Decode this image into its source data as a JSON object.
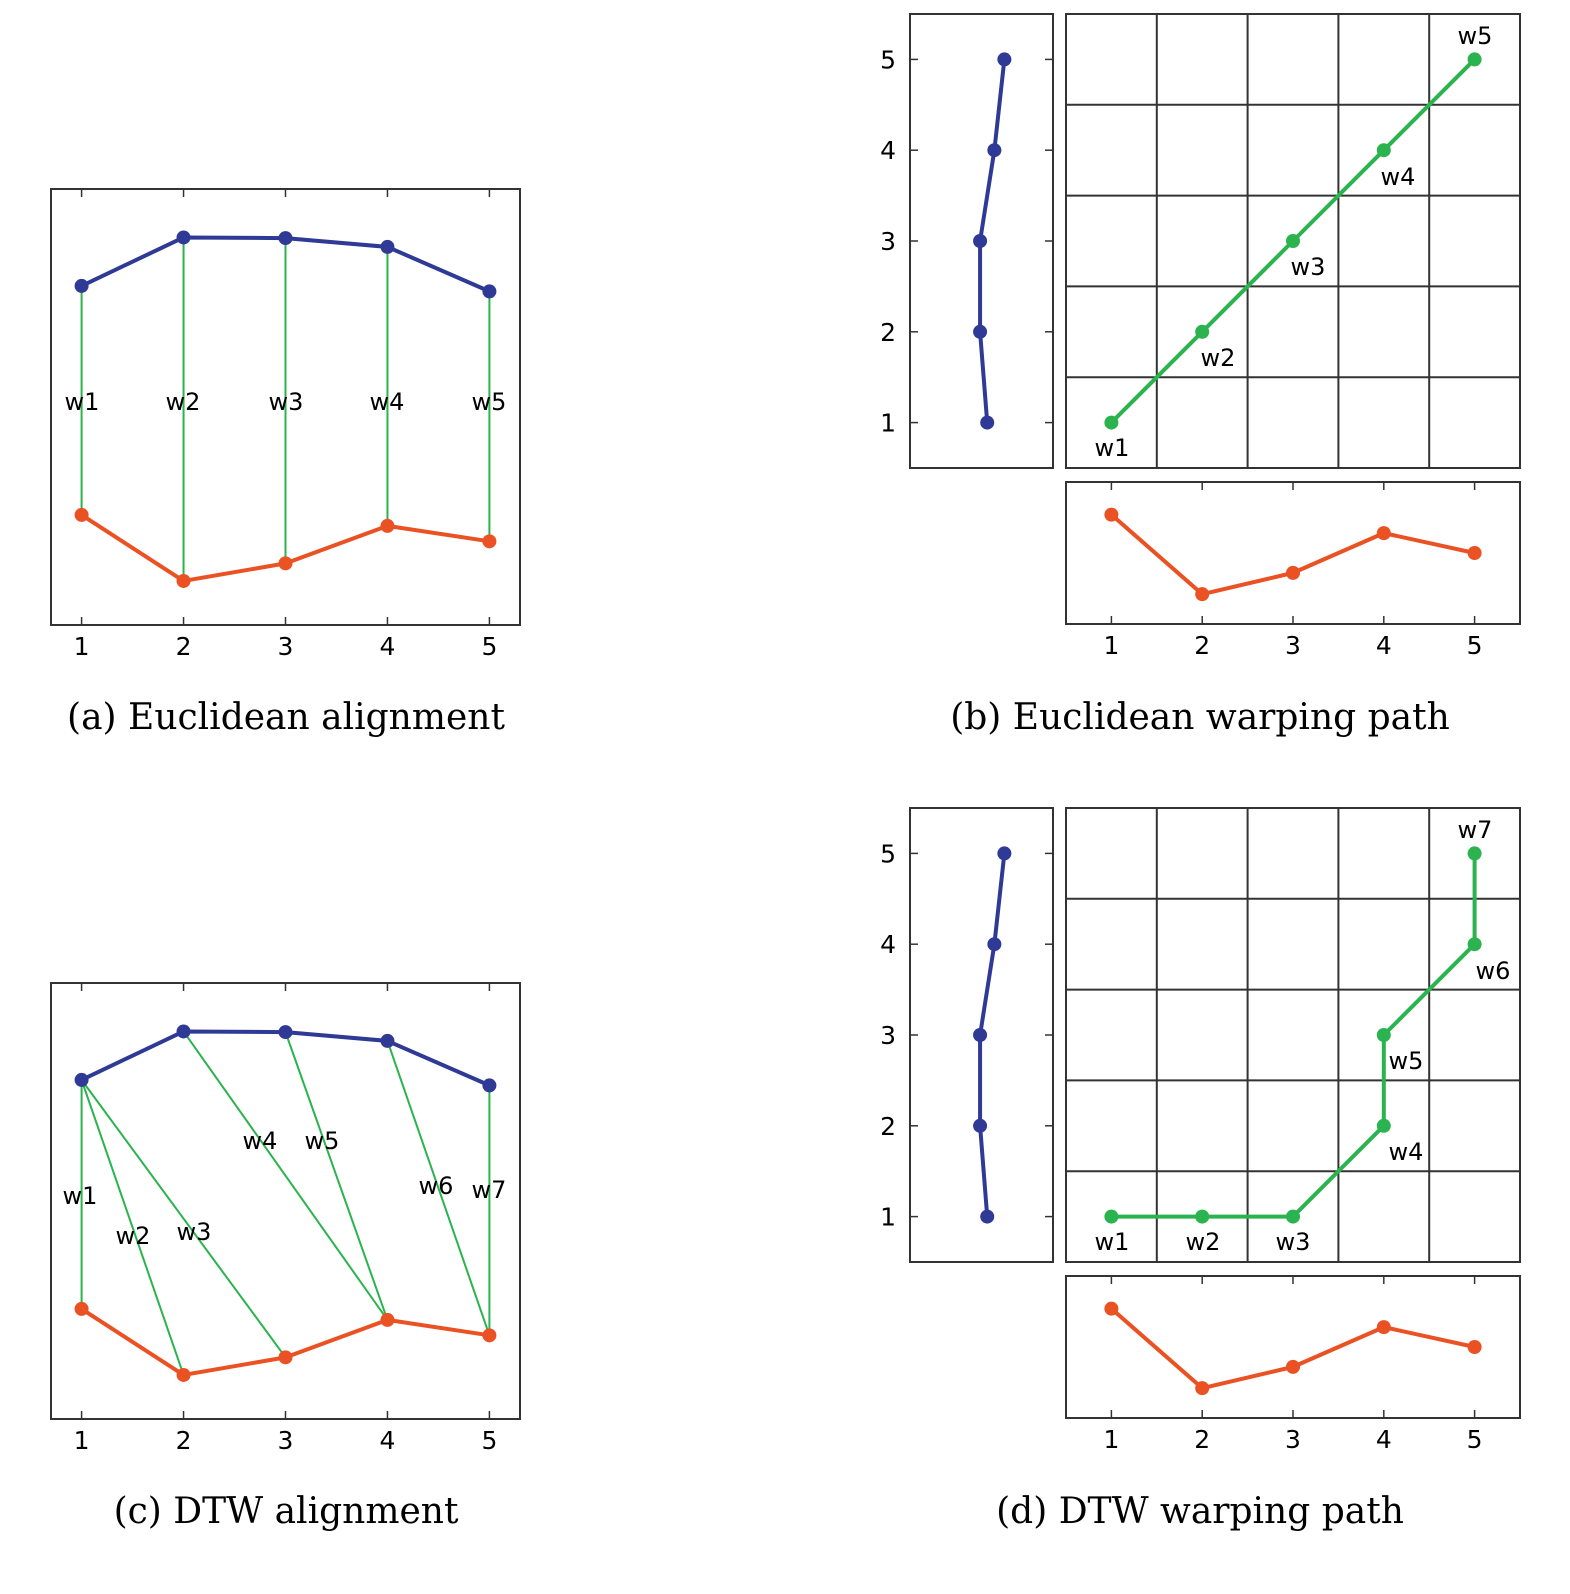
{
  "colors": {
    "series_a": "#2e3a96",
    "series_b": "#ea5123",
    "path": "#2ab34e",
    "grid": "#333333"
  },
  "chart_data": [
    {
      "id": "a",
      "type": "line",
      "caption": "(a) Euclidean alignment",
      "x": [
        1,
        2,
        3,
        4,
        5
      ],
      "series": [
        {
          "values": [
            0.76,
            0.98,
            0.977,
            0.937,
            0.735
          ]
        },
        {
          "values": [
            -0.28,
            -0.58,
            -0.5,
            -0.33,
            -0.4
          ]
        }
      ],
      "xlim": [
        0.7,
        5.3
      ],
      "ylim": [
        -0.78,
        1.2
      ],
      "xticks": [
        "1",
        "2",
        "3",
        "4",
        "5"
      ],
      "links": [
        {
          "label": "w1",
          "from": 1,
          "to": 1
        },
        {
          "label": "w2",
          "from": 2,
          "to": 2
        },
        {
          "label": "w3",
          "from": 3,
          "to": 3
        },
        {
          "label": "w4",
          "from": 4,
          "to": 4
        },
        {
          "label": "w5",
          "from": 5,
          "to": 5
        }
      ]
    },
    {
      "id": "b",
      "type": "line",
      "caption": "(b) Euclidean warping path",
      "vertical_series": {
        "values": [
          0.54,
          0.49,
          0.49,
          0.59,
          0.66
        ],
        "y": [
          1,
          2,
          3,
          4,
          5
        ]
      },
      "horizontal_series": {
        "x": [
          1,
          2,
          3,
          4,
          5
        ],
        "values": [
          0.77,
          0.21,
          0.36,
          0.64,
          0.5
        ]
      },
      "xlim": [
        0.5,
        5.5
      ],
      "ylim": [
        0.5,
        5.5
      ],
      "xticks": [
        "1",
        "2",
        "3",
        "4",
        "5"
      ],
      "yticks": [
        "1",
        "2",
        "3",
        "4",
        "5"
      ],
      "warping_path": [
        {
          "label": "w1",
          "x": 1,
          "y": 1
        },
        {
          "label": "w2",
          "x": 2,
          "y": 2
        },
        {
          "label": "w3",
          "x": 3,
          "y": 3
        },
        {
          "label": "w4",
          "x": 4,
          "y": 4
        },
        {
          "label": "w5",
          "x": 5,
          "y": 5
        }
      ]
    },
    {
      "id": "c",
      "type": "line",
      "caption": "(c) DTW alignment",
      "x": [
        1,
        2,
        3,
        4,
        5
      ],
      "series": [
        {
          "values": [
            0.76,
            0.98,
            0.977,
            0.937,
            0.735
          ]
        },
        {
          "values": [
            -0.28,
            -0.58,
            -0.5,
            -0.33,
            -0.4
          ]
        }
      ],
      "xlim": [
        0.7,
        5.3
      ],
      "ylim": [
        -0.78,
        1.2
      ],
      "xticks": [
        "1",
        "2",
        "3",
        "4",
        "5"
      ],
      "links": [
        {
          "label": "w1",
          "from": 1,
          "to": 1
        },
        {
          "label": "w2",
          "from": 1,
          "to": 2
        },
        {
          "label": "w3",
          "from": 1,
          "to": 3
        },
        {
          "label": "w4",
          "from": 2,
          "to": 4
        },
        {
          "label": "w5",
          "from": 3,
          "to": 4
        },
        {
          "label": "w6",
          "from": 4,
          "to": 5
        },
        {
          "label": "w7",
          "from": 5,
          "to": 5
        }
      ]
    },
    {
      "id": "d",
      "type": "line",
      "caption": "(d) DTW warping path",
      "vertical_series": {
        "values": [
          0.54,
          0.49,
          0.49,
          0.59,
          0.66
        ],
        "y": [
          1,
          2,
          3,
          4,
          5
        ]
      },
      "horizontal_series": {
        "x": [
          1,
          2,
          3,
          4,
          5
        ],
        "values": [
          0.77,
          0.21,
          0.36,
          0.64,
          0.5
        ]
      },
      "xlim": [
        0.5,
        5.5
      ],
      "ylim": [
        0.5,
        5.5
      ],
      "xticks": [
        "1",
        "2",
        "3",
        "4",
        "5"
      ],
      "yticks": [
        "1",
        "2",
        "3",
        "4",
        "5"
      ],
      "warping_path": [
        {
          "label": "w1",
          "x": 1,
          "y": 1
        },
        {
          "label": "w2",
          "x": 2,
          "y": 1
        },
        {
          "label": "w3",
          "x": 3,
          "y": 1
        },
        {
          "label": "w4",
          "x": 4,
          "y": 2
        },
        {
          "label": "w5",
          "x": 4,
          "y": 3
        },
        {
          "label": "w6",
          "x": 5,
          "y": 4
        },
        {
          "label": "w7",
          "x": 5,
          "y": 5
        }
      ]
    }
  ]
}
